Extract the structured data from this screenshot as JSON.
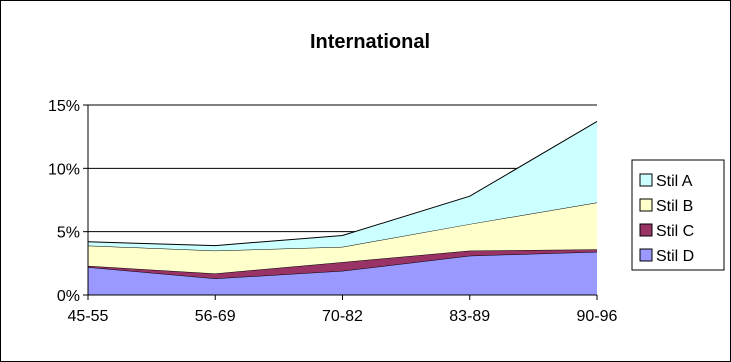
{
  "chart_data": {
    "type": "area",
    "stacked": true,
    "title": "International",
    "xlabel": "",
    "ylabel": "",
    "categories": [
      "45-55",
      "56-69",
      "70-82",
      "83-89",
      "90-96"
    ],
    "y_ticks": [
      "0%",
      "5%",
      "10%",
      "15%"
    ],
    "ylim": [
      0,
      15
    ],
    "grid": true,
    "legend_position": "right",
    "series": [
      {
        "name": "Stil D",
        "values": [
          2.2,
          1.3,
          1.9,
          3.1,
          3.4
        ],
        "color": "#9999FF"
      },
      {
        "name": "Stil C",
        "values": [
          0.1,
          0.4,
          0.7,
          0.4,
          0.2
        ],
        "color": "#993366"
      },
      {
        "name": "Stil B",
        "values": [
          1.6,
          1.8,
          1.2,
          2.1,
          3.7
        ],
        "color": "#FFFFCC"
      },
      {
        "name": "Stil A",
        "values": [
          0.3,
          0.4,
          0.9,
          2.2,
          6.4
        ],
        "color": "#CCFFFF"
      }
    ],
    "legend_order": [
      "Stil A",
      "Stil B",
      "Stil C",
      "Stil D"
    ]
  }
}
